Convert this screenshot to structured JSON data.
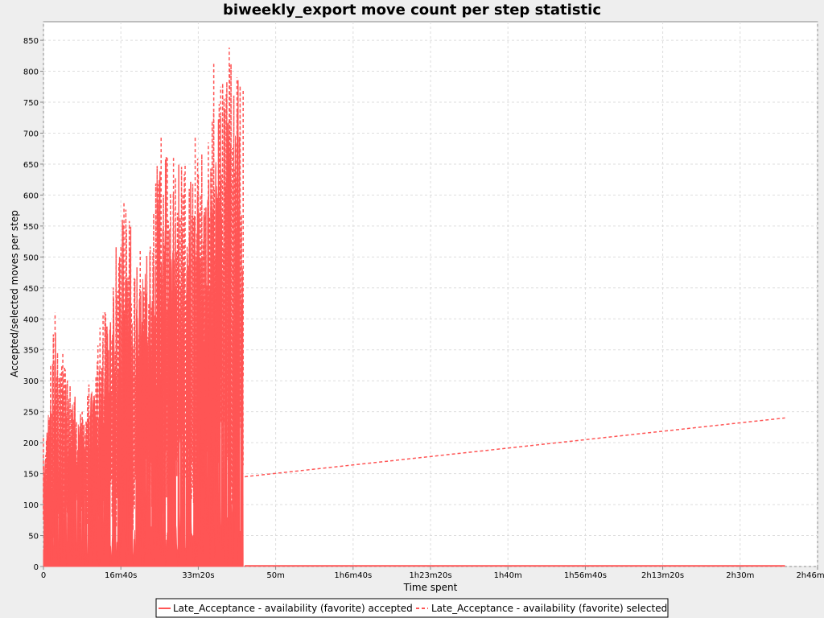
{
  "chart_data": {
    "type": "line",
    "title": "biweekly_export move count per step statistic",
    "xlabel": "Time spent",
    "ylabel": "Accepted/selected moves per step",
    "x_unit": "seconds",
    "xlim": [
      0,
      10000
    ],
    "ylim": [
      0,
      880
    ],
    "x_ticks": [
      {
        "value": 0,
        "label": "0"
      },
      {
        "value": 1000,
        "label": "16m40s"
      },
      {
        "value": 2000,
        "label": "33m20s"
      },
      {
        "value": 3000,
        "label": "50m"
      },
      {
        "value": 4000,
        "label": "1h6m40s"
      },
      {
        "value": 5000,
        "label": "1h23m20s"
      },
      {
        "value": 6000,
        "label": "1h40m"
      },
      {
        "value": 7000,
        "label": "1h56m40s"
      },
      {
        "value": 8000,
        "label": "2h13m20s"
      },
      {
        "value": 9000,
        "label": "2h30m"
      },
      {
        "value": 10000,
        "label": "2h46m40s"
      }
    ],
    "y_ticks": [
      0,
      50,
      100,
      150,
      200,
      250,
      300,
      350,
      400,
      450,
      500,
      550,
      600,
      650,
      700,
      750,
      800,
      850
    ],
    "grid": true,
    "legend_position": "bottom",
    "series": [
      {
        "name": "Late_Acceptance - availability (favorite) accepted",
        "color": "#ff5555",
        "style": "solid-filled",
        "x": [
          0,
          2580,
          2600,
          9580
        ],
        "y": [
          100,
          400,
          1,
          1
        ],
        "note_points": [
          [
            150,
            400
          ],
          [
            2580,
            450
          ],
          [
            2600,
            1
          ],
          [
            9580,
            1
          ]
        ]
      },
      {
        "name": "Late_Acceptance - availability (favorite) selected",
        "color": "#ff5555",
        "style": "dashed",
        "x": [
          0,
          150,
          250,
          500,
          770,
          1040,
          1250,
          1520,
          1600,
          1680,
          1830,
          1960,
          2130,
          2200,
          2290,
          2400,
          2500,
          2580,
          2600,
          9580
        ],
        "y": [
          210,
          410,
          345,
          250,
          410,
          590,
          510,
          695,
          660,
          660,
          650,
          695,
          685,
          812,
          775,
          838,
          790,
          770,
          145,
          240
        ]
      }
    ]
  },
  "legend": {
    "items": [
      {
        "label": "Late_Acceptance - availability (favorite) accepted",
        "color": "#ff5555",
        "dash": "solid"
      },
      {
        "label": "Late_Acceptance - availability (favorite) selected",
        "color": "#ff5555",
        "dash": "dashed"
      }
    ]
  }
}
